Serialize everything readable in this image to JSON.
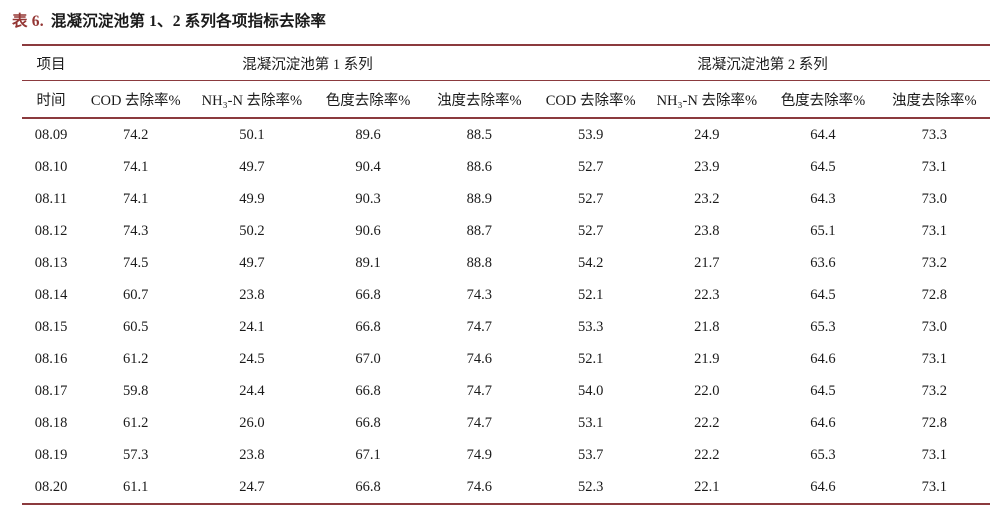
{
  "title": {
    "prefix": "表 6.",
    "text": "混凝沉淀池第 1、2 系列各项指标去除率"
  },
  "colors": {
    "rule": "#8b3a3e",
    "title_prefix": "#943634",
    "text": "#1a1a1a"
  },
  "table": {
    "header_row1": {
      "item": "项目",
      "series1": "混凝沉淀池第 1 系列",
      "series2": "混凝沉淀池第 2 系列"
    },
    "header_row2": [
      "时间",
      "COD 去除率%",
      "NH₃-N 去除率%",
      "色度去除率%",
      "浊度去除率%",
      "COD 去除率%",
      "NH₃-N 去除率%",
      "色度去除率%",
      "浊度去除率%"
    ],
    "rows": [
      {
        "date": "08.09",
        "values": [
          "74.2",
          "50.1",
          "89.6",
          "88.5",
          "53.9",
          "24.9",
          "64.4",
          "73.3"
        ]
      },
      {
        "date": "08.10",
        "values": [
          "74.1",
          "49.7",
          "90.4",
          "88.6",
          "52.7",
          "23.9",
          "64.5",
          "73.1"
        ]
      },
      {
        "date": "08.11",
        "values": [
          "74.1",
          "49.9",
          "90.3",
          "88.9",
          "52.7",
          "23.2",
          "64.3",
          "73.0"
        ]
      },
      {
        "date": "08.12",
        "values": [
          "74.3",
          "50.2",
          "90.6",
          "88.7",
          "52.7",
          "23.8",
          "65.1",
          "73.1"
        ]
      },
      {
        "date": "08.13",
        "values": [
          "74.5",
          "49.7",
          "89.1",
          "88.8",
          "54.2",
          "21.7",
          "63.6",
          "73.2"
        ]
      },
      {
        "date": "08.14",
        "values": [
          "60.7",
          "23.8",
          "66.8",
          "74.3",
          "52.1",
          "22.3",
          "64.5",
          "72.8"
        ]
      },
      {
        "date": "08.15",
        "values": [
          "60.5",
          "24.1",
          "66.8",
          "74.7",
          "53.3",
          "21.8",
          "65.3",
          "73.0"
        ]
      },
      {
        "date": "08.16",
        "values": [
          "61.2",
          "24.5",
          "67.0",
          "74.6",
          "52.1",
          "21.9",
          "64.6",
          "73.1"
        ]
      },
      {
        "date": "08.17",
        "values": [
          "59.8",
          "24.4",
          "66.8",
          "74.7",
          "54.0",
          "22.0",
          "64.5",
          "73.2"
        ]
      },
      {
        "date": "08.18",
        "values": [
          "61.2",
          "26.0",
          "66.8",
          "74.7",
          "53.1",
          "22.2",
          "64.6",
          "72.8"
        ]
      },
      {
        "date": "08.19",
        "values": [
          "57.3",
          "23.8",
          "67.1",
          "74.9",
          "53.7",
          "22.2",
          "65.3",
          "73.1"
        ]
      },
      {
        "date": "08.20",
        "values": [
          "61.1",
          "24.7",
          "66.8",
          "74.6",
          "52.3",
          "22.1",
          "64.6",
          "73.1"
        ]
      }
    ]
  }
}
